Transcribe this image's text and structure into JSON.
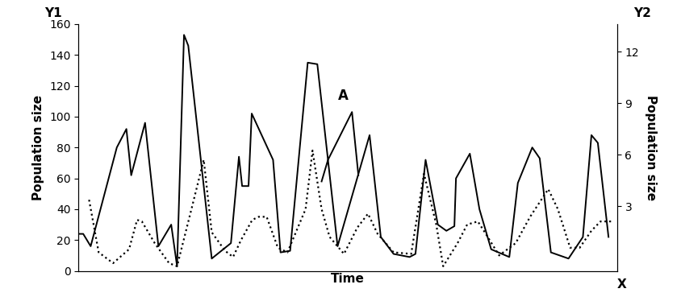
{
  "chart_data": {
    "type": "line",
    "x_label": "Time",
    "y_label": "Population size",
    "y2_label": "Population size",
    "x_axis_name": "X",
    "y_axis_name": "Y1",
    "y2_axis_name": "Y2",
    "xlim": [
      0,
      101
    ],
    "ylim": [
      0,
      160
    ],
    "yticks": [
      0,
      20,
      40,
      60,
      80,
      100,
      120,
      140,
      160
    ],
    "y2lim": [
      -0.77,
      13.6
    ],
    "y2ticks": [
      3,
      6,
      9,
      12
    ],
    "tick_labels": "y",
    "grid": false,
    "series": [
      {
        "color": "#000000",
        "line_style": "solid",
        "axis": "y1",
        "x": [
          0,
          0.9,
          2.3,
          7.2,
          9.0,
          9.9,
          12.5,
          15.0,
          17.4,
          18.5,
          19.8,
          20.6,
          25.0,
          28.6,
          30.1,
          30.7,
          31.9,
          32.5,
          36.5,
          37.9,
          39.7,
          43.0,
          44.8,
          48.6,
          54.6,
          56.7,
          59.1,
          62.1,
          63.2,
          65.1,
          67.4,
          69.0,
          70.5,
          70.8,
          73.4,
          75.2,
          77.4,
          80.8,
          82.4,
          85.1,
          86.5,
          88.6,
          91.9,
          94.6,
          96.2,
          97.4,
          99.4
        ],
        "values": [
          24,
          24,
          16,
          80,
          92,
          62,
          96,
          16,
          30,
          3,
          153,
          146,
          8,
          18,
          74,
          55,
          55,
          102,
          72,
          12,
          13,
          135,
          134,
          16,
          88,
          22,
          11,
          9,
          11,
          72,
          30,
          26,
          29,
          60,
          76,
          40,
          14,
          9,
          57,
          80,
          73,
          12,
          8,
          22,
          88,
          83,
          22
        ]
      },
      {
        "name": "A",
        "color": "#000000",
        "line_style": "solid",
        "axis": "y1",
        "x": [
          45.6,
          46.8,
          51.3,
          52.5
        ],
        "values": [
          58,
          72,
          103,
          62
        ]
      },
      {
        "color": "#000000",
        "line_style": "dotted",
        "axis": "y2",
        "x": [
          2.0,
          3.8,
          6.5,
          9.5,
          11.0,
          11.9,
          14.3,
          17.0,
          18.5,
          21.2,
          23.5,
          25.0,
          27.5,
          29.0,
          30.5,
          32.6,
          33.8,
          35.3,
          37.4,
          39.2,
          42.6,
          43.9,
          45.6,
          47.1,
          49.8,
          52.3,
          54.3,
          56.1,
          59.1,
          62.4,
          64.8,
          67.1,
          68.4,
          71.1,
          72.9,
          74.9,
          76.2,
          78.9,
          82.0,
          84.7,
          88.1,
          89.9,
          92.2,
          94.0,
          96.2,
          97.9,
          100.0
        ],
        "values": [
          3.37,
          0.31,
          -0.32,
          0.49,
          2.2,
          2.11,
          0.85,
          -0.32,
          -0.5,
          2.83,
          5.7,
          1.48,
          0.4,
          0.04,
          1.03,
          2.2,
          2.38,
          2.38,
          0.58,
          0.31,
          2.83,
          6.24,
          2.83,
          1.21,
          0.22,
          1.75,
          2.56,
          1.39,
          0.31,
          0.22,
          4.89,
          1.93,
          -0.5,
          0.85,
          1.93,
          2.11,
          1.48,
          0.13,
          0.85,
          2.38,
          3.99,
          2.83,
          0.58,
          0.58,
          1.57,
          2.11,
          2.11
        ]
      }
    ]
  }
}
